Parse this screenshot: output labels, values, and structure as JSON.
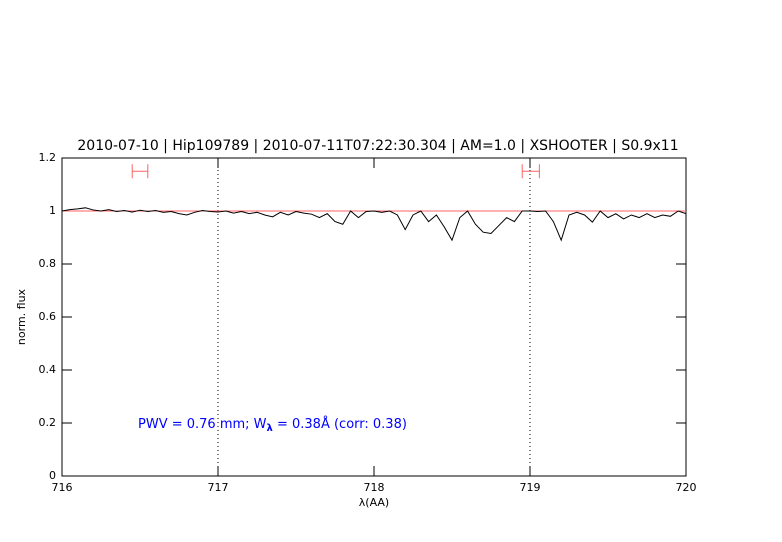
{
  "chart_data": {
    "type": "line",
    "title": "2010-07-10 | Hip109789 | 2010-07-11T07:22:30.304 | AM=1.0 | XSHOOTER | S0.9x11",
    "title_color": "#0000ff",
    "xlabel": "λ(AA)",
    "ylabel": "norm. flux",
    "xlim": [
      716,
      720
    ],
    "ylim": [
      0,
      1.2
    ],
    "xticks": [
      716,
      717,
      718,
      719,
      720
    ],
    "yticks": [
      0,
      0.2,
      0.4,
      0.6,
      0.8,
      1,
      1.2
    ],
    "x": [
      716.0,
      716.05,
      716.1,
      716.15,
      716.2,
      716.25,
      716.3,
      716.35,
      716.4,
      716.45,
      716.5,
      716.55,
      716.6,
      716.65,
      716.7,
      716.75,
      716.8,
      716.85,
      716.9,
      716.95,
      717.0,
      717.05,
      717.1,
      717.15,
      717.2,
      717.25,
      717.3,
      717.35,
      717.4,
      717.45,
      717.5,
      717.55,
      717.6,
      717.65,
      717.7,
      717.75,
      717.8,
      717.85,
      717.9,
      717.95,
      718.0,
      718.05,
      718.1,
      718.15,
      718.2,
      718.25,
      718.3,
      718.35,
      718.4,
      718.45,
      718.5,
      718.55,
      718.6,
      718.65,
      718.7,
      718.75,
      718.8,
      718.85,
      718.9,
      718.95,
      719.0,
      719.05,
      719.1,
      719.15,
      719.2,
      719.25,
      719.3,
      719.35,
      719.4,
      719.45,
      719.5,
      719.55,
      719.6,
      719.65,
      719.7,
      719.75,
      719.8,
      719.85,
      719.9,
      719.95,
      720.0
    ],
    "series": [
      {
        "color": "#000000",
        "values": [
          1.0,
          1.005,
          1.008,
          1.012,
          1.004,
          1.0,
          1.005,
          0.998,
          1.002,
          0.996,
          1.003,
          0.998,
          1.002,
          0.995,
          0.998,
          0.99,
          0.985,
          0.995,
          1.002,
          0.998,
          0.996,
          1.0,
          0.992,
          0.998,
          0.99,
          0.995,
          0.985,
          0.978,
          0.995,
          0.985,
          0.998,
          0.992,
          0.988,
          0.975,
          0.99,
          0.96,
          0.95,
          1.0,
          0.975,
          0.998,
          1.0,
          0.995,
          1.0,
          0.985,
          0.93,
          0.985,
          1.0,
          0.96,
          0.985,
          0.94,
          0.89,
          0.975,
          1.0,
          0.95,
          0.92,
          0.915,
          0.945,
          0.975,
          0.96,
          1.0,
          1.0,
          0.998,
          1.0,
          0.96,
          0.89,
          0.985,
          0.995,
          0.985,
          0.958,
          1.0,
          0.975,
          0.99,
          0.97,
          0.985,
          0.975,
          0.99,
          0.975,
          0.985,
          0.98,
          1.0,
          0.99
        ]
      }
    ],
    "hlines": [
      {
        "value": 1,
        "color": "#ff6060"
      }
    ],
    "vlines": [
      717,
      719
    ],
    "ranges": [
      {
        "x": [
          716.45,
          716.55
        ],
        "y": 1.15,
        "color": "#ff6060"
      },
      {
        "x": [
          718.95,
          719.06
        ],
        "y": 1.15,
        "color": "#ff6060"
      }
    ],
    "annotation": {
      "text": "PWV = 0.76 mm; W",
      "subscript": "λ",
      "rest": " = 0.38Å (corr: 0.38)",
      "color": "#0000ff"
    }
  }
}
